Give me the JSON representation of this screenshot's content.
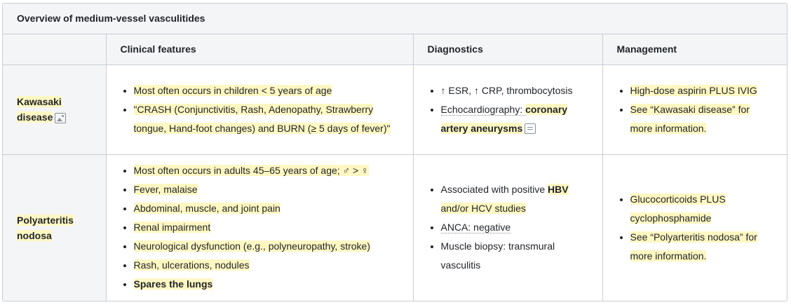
{
  "table": {
    "caption": "Overview of medium-vessel vasculitides",
    "headers": [
      "",
      "Clinical features",
      "Diagnostics",
      "Management"
    ],
    "rows": [
      {
        "name_line1": "Kawasaki",
        "name_line2": "disease",
        "name_icon": "image-icon",
        "clinical": [
          "Most often occurs in children < 5 years of age",
          "\"CRASH (Conjunctivitis, Rash, Adenopathy, Strawberry tongue, Hand-foot changes) and BURN (≥ 5 days of fever)\""
        ],
        "diagnostics": {
          "item1": "↑ ESR, ↑ CRP, thrombocytosis",
          "item2_prefix": "Echocardiography: ",
          "item2_bold": "coronary artery aneurysms",
          "item2_icon": "note-icon"
        },
        "management": [
          "High-dose aspirin PLUS IVIG",
          "See “Kawasaki disease” for more information."
        ]
      },
      {
        "name_line1": "Polyarteritis",
        "name_line2": "nodosa",
        "clinical": [
          "Most often occurs in adults 45–65 years of age; ♂ > ♀",
          "Fever, malaise",
          "Abdominal, muscle, and joint pain",
          "Renal impairment",
          "Neurological dysfunction (e.g., polyneuropathy, stroke)",
          "Rash, ulcerations, nodules",
          "Spares the lungs"
        ],
        "diagnostics": {
          "item1_prefix": "Associated with positive ",
          "item1_bold": "HBV",
          "item1_suffix": "and/or HCV studies",
          "item2": "ANCA: negative",
          "item3": "Muscle biopsy: transmural vasculitis"
        },
        "management": [
          "Glucocorticoids PLUS cyclophosphamide",
          "See “Polyarteritis nodosa” for more information."
        ]
      }
    ]
  }
}
